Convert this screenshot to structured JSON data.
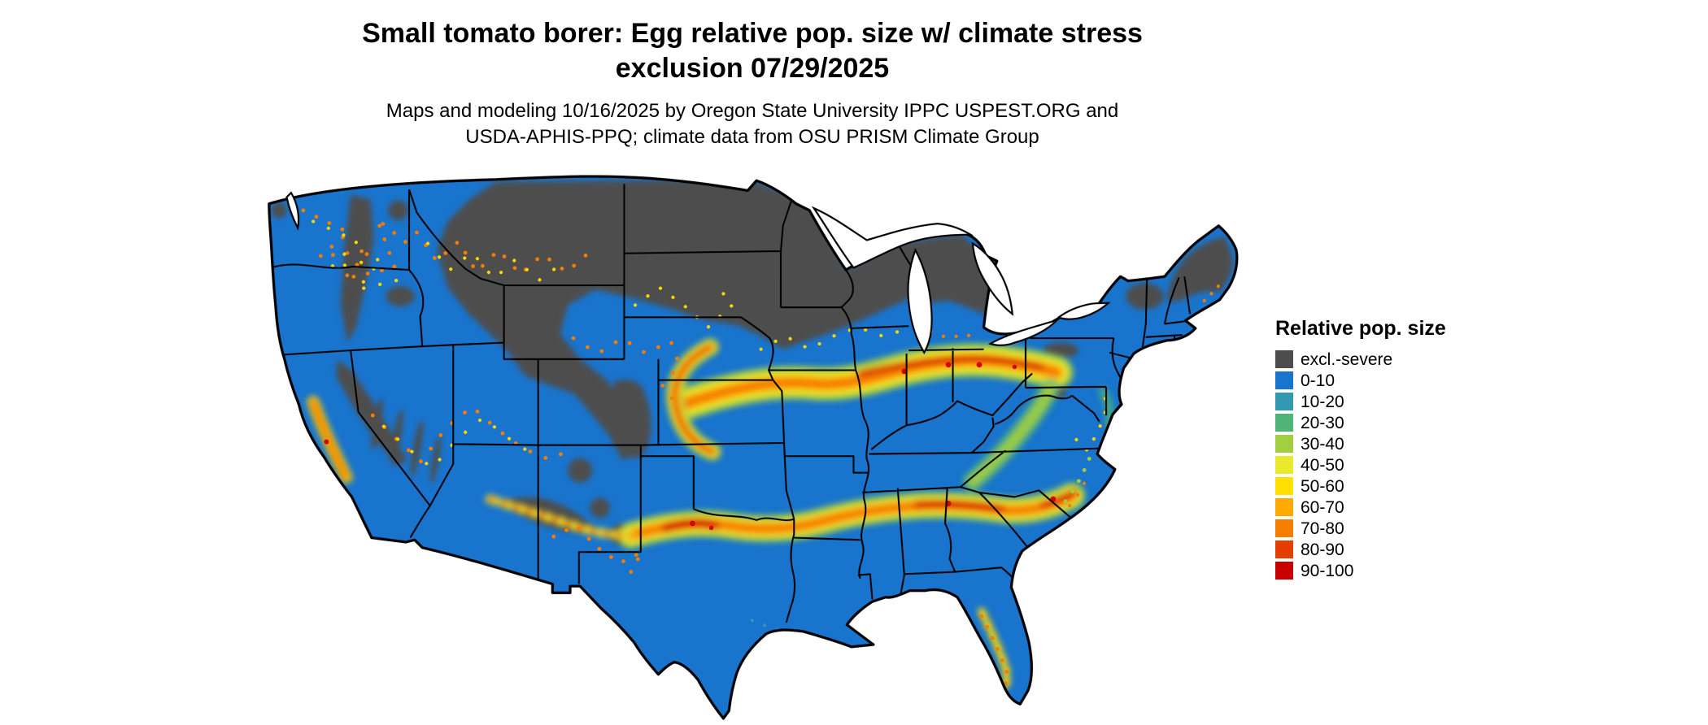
{
  "header": {
    "title_line1": "Small tomato borer: Egg relative pop. size w/ climate stress",
    "title_line2": "exclusion 07/29/2025",
    "subtitle_line1": "Maps and modeling 10/16/2025 by Oregon State University IPPC USPEST.ORG and",
    "subtitle_line2": "USDA-APHIS-PPQ; climate data from OSU PRISM Climate Group"
  },
  "map": {
    "area": "contiguous United States",
    "base_color": "#1874cd",
    "exclusion_color": "#4d4d4d"
  },
  "legend": {
    "title": "Relative pop. size",
    "items": [
      {
        "label": "excl.-severe",
        "color": "#4d4d4d"
      },
      {
        "label": "0-10",
        "color": "#1874cd"
      },
      {
        "label": "10-20",
        "color": "#3399b1"
      },
      {
        "label": "20-30",
        "color": "#4fb477"
      },
      {
        "label": "30-40",
        "color": "#a3cf3f"
      },
      {
        "label": "40-50",
        "color": "#e9e92e"
      },
      {
        "label": "50-60",
        "color": "#ffe000"
      },
      {
        "label": "60-70",
        "color": "#ffaa00"
      },
      {
        "label": "70-80",
        "color": "#f57d00"
      },
      {
        "label": "80-90",
        "color": "#e33d00"
      },
      {
        "label": "90-100",
        "color": "#c80000"
      }
    ]
  }
}
